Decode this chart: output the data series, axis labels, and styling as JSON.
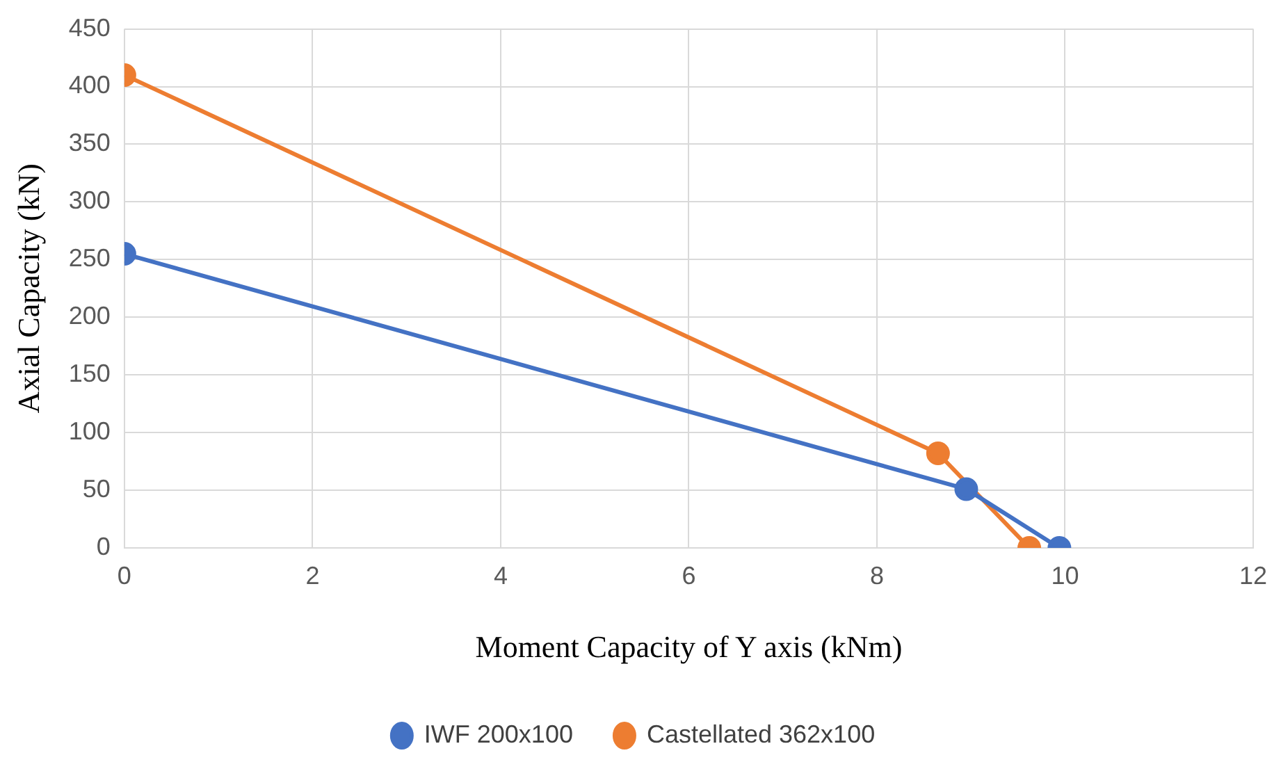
{
  "chart_data": {
    "type": "line",
    "xlabel": "Moment Capacity of Y axis (kNm)",
    "ylabel": "Axial Capacity (kN)",
    "xlim": [
      0,
      12
    ],
    "xticks": [
      0,
      2,
      4,
      6,
      8,
      10,
      12
    ],
    "ylim": [
      0,
      450
    ],
    "yticks": [
      0,
      50,
      100,
      150,
      200,
      250,
      300,
      350,
      400,
      450
    ],
    "grid": true,
    "legend": "bottom",
    "marker": "circle",
    "line_style": "solid",
    "series": [
      {
        "name": "IWF 200x100",
        "color": "#4472c4",
        "x": [
          0,
          8.95,
          9.94
        ],
        "values": [
          255,
          51,
          0
        ]
      },
      {
        "name": "Castellated 362x100",
        "color": "#ed7d31",
        "x": [
          0,
          8.65,
          9.62
        ],
        "values": [
          410,
          82,
          0
        ]
      }
    ]
  }
}
